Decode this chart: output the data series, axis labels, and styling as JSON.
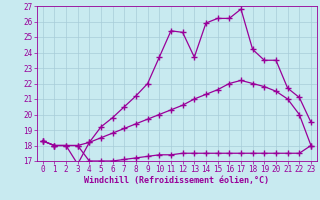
{
  "xlabel": "Windchill (Refroidissement éolien,°C)",
  "background_color": "#c8eaf0",
  "grid_color": "#a8ccd8",
  "line_color": "#990099",
  "xlim": [
    -0.5,
    23.5
  ],
  "ylim": [
    17,
    27
  ],
  "xticks": [
    0,
    1,
    2,
    3,
    4,
    5,
    6,
    7,
    8,
    9,
    10,
    11,
    12,
    13,
    14,
    15,
    16,
    17,
    18,
    19,
    20,
    21,
    22,
    23
  ],
  "yticks": [
    17,
    18,
    19,
    20,
    21,
    22,
    23,
    24,
    25,
    26,
    27
  ],
  "line1_x": [
    0,
    1,
    3,
    4,
    5,
    6,
    7,
    8,
    9,
    10,
    11,
    12,
    13,
    14,
    15,
    16,
    17,
    18,
    19,
    20,
    21,
    22,
    23
  ],
  "line1_y": [
    18.3,
    18.0,
    18.0,
    17.0,
    17.0,
    17.0,
    17.1,
    17.2,
    17.3,
    17.4,
    17.4,
    17.5,
    17.5,
    17.5,
    17.5,
    17.5,
    17.5,
    17.5,
    17.5,
    17.5,
    17.5,
    17.5,
    18.0
  ],
  "line2_x": [
    0,
    1,
    2,
    3,
    4,
    5,
    6,
    7,
    8,
    9,
    10,
    11,
    12,
    13,
    14,
    15,
    16,
    17,
    18,
    19,
    20,
    21,
    22,
    23
  ],
  "line2_y": [
    18.3,
    18.0,
    18.0,
    18.0,
    18.2,
    18.5,
    18.8,
    19.1,
    19.4,
    19.7,
    20.0,
    20.3,
    20.6,
    21.0,
    21.3,
    21.6,
    22.0,
    22.2,
    22.0,
    21.8,
    21.5,
    21.0,
    20.0,
    18.0
  ],
  "line3_x": [
    0,
    1,
    2,
    3,
    4,
    5,
    6,
    7,
    8,
    9,
    10,
    11,
    12,
    13,
    14,
    15,
    16,
    17,
    18,
    19,
    20,
    21,
    22,
    23
  ],
  "line3_y": [
    18.3,
    18.0,
    18.0,
    16.8,
    18.2,
    19.2,
    19.8,
    20.5,
    21.2,
    22.0,
    23.7,
    25.4,
    25.3,
    23.7,
    25.9,
    26.2,
    26.2,
    26.8,
    24.2,
    23.5,
    23.5,
    21.7,
    21.1,
    19.5
  ],
  "marker": "+",
  "marker_size": 4,
  "marker_linewidth": 1.0,
  "linewidth": 0.9,
  "tick_fontsize": 5.5,
  "xlabel_fontsize": 6.0
}
